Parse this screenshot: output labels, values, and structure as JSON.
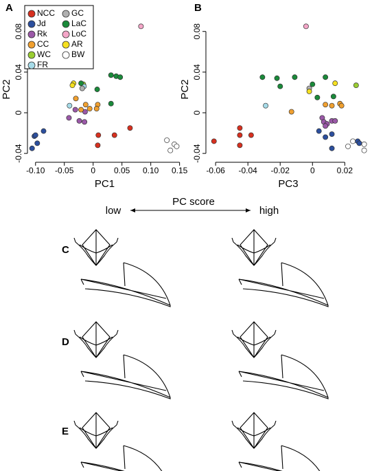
{
  "chart_data": [
    {
      "type": "scatter",
      "panel_label": "A",
      "xlabel": "PC1",
      "ylabel": "PC2",
      "legend": true,
      "xlim": [
        -0.114,
        0.154
      ],
      "ylim": [
        -0.046,
        0.092
      ],
      "xticks": [
        {
          "value": -0.1,
          "label": "-0.10"
        },
        -0.05,
        0,
        0.05,
        {
          "value": 0.1,
          "label": "0.10"
        },
        0.15
      ],
      "yticks": [
        -0.04,
        0,
        0.04,
        0.08
      ],
      "series": [
        {
          "name": "NCC",
          "color": "#d7301f",
          "x": [
            0.009,
            0.008,
            0.037,
            0.064
          ],
          "y": [
            -0.022,
            -0.032,
            -0.022,
            -0.015
          ]
        },
        {
          "name": "Jd",
          "color": "#2c4f9e",
          "x": [
            -0.102,
            -0.097,
            -0.086,
            -0.106,
            -0.1
          ],
          "y": [
            -0.023,
            -0.03,
            -0.018,
            -0.035,
            -0.022
          ]
        },
        {
          "name": "Rk",
          "color": "#9b59a8",
          "x": [
            -0.031,
            -0.042,
            -0.024,
            -0.015,
            -0.014
          ],
          "y": [
            0.003,
            -0.005,
            -0.008,
            -0.009,
            0.001
          ]
        },
        {
          "name": "CC",
          "color": "#f0a030",
          "x": [
            -0.03,
            -0.013,
            -0.006,
            0.008,
            0.006,
            -0.021
          ],
          "y": [
            0.014,
            0.008,
            0.004,
            0.008,
            0.004,
            0.003
          ]
        },
        {
          "name": "WC",
          "color": "#9acd32",
          "x": [
            -0.017
          ],
          "y": [
            0.028
          ]
        },
        {
          "name": "FR",
          "color": "#a6dbe8",
          "x": [
            -0.041,
            -0.016
          ],
          "y": [
            0.007,
            0.026
          ]
        },
        {
          "name": "GC",
          "color": "#b0b0b0",
          "x": [
            -0.019
          ],
          "y": [
            0.024
          ]
        },
        {
          "name": "LaC",
          "color": "#1a8a3a",
          "x": [
            0.031,
            0.04,
            0.047,
            -0.021,
            0.007,
            0.031
          ],
          "y": [
            0.037,
            0.036,
            0.035,
            0.029,
            0.023,
            0.009
          ]
        },
        {
          "name": "LoC",
          "color": "#f4a6c8",
          "x": [
            0.083
          ],
          "y": [
            0.085
          ]
        },
        {
          "name": "AR",
          "color": "#f5e020",
          "x": [
            -0.034,
            -0.036
          ],
          "y": [
            0.029,
            0.027
          ]
        },
        {
          "name": "BW",
          "color": "#ffffff",
          "x": [
            0.128,
            0.134,
            0.141,
            0.145
          ],
          "y": [
            -0.027,
            -0.037,
            -0.031,
            -0.033
          ]
        }
      ]
    },
    {
      "type": "scatter",
      "panel_label": "B",
      "xlabel": "PC3",
      "ylabel": "PC2",
      "legend": false,
      "xlim": [
        -0.066,
        0.036
      ],
      "ylim": [
        -0.046,
        0.092
      ],
      "xticks": [
        -0.06,
        -0.04,
        -0.02,
        0,
        0.02
      ],
      "yticks": [
        -0.04,
        0,
        0.04,
        0.08
      ],
      "series": [
        {
          "color": "#d7301f",
          "x": [
            -0.061,
            -0.045,
            -0.045,
            -0.038,
            -0.045
          ],
          "y": [
            -0.028,
            -0.015,
            -0.022,
            -0.022,
            -0.032
          ]
        },
        {
          "color": "#2c4f9e",
          "x": [
            0.004,
            0.008,
            0.012,
            0.012,
            0.028,
            0.029
          ],
          "y": [
            -0.018,
            -0.024,
            -0.035,
            -0.021,
            -0.028,
            -0.03
          ]
        },
        {
          "color": "#9b59a8",
          "x": [
            0.006,
            0.007,
            0.009,
            0.012,
            0.014,
            0.008
          ],
          "y": [
            -0.005,
            -0.009,
            -0.011,
            -0.008,
            -0.008,
            -0.013
          ]
        },
        {
          "color": "#f0a030",
          "x": [
            -0.013,
            0.012,
            0.017,
            0.018,
            0.008
          ],
          "y": [
            0.001,
            0.007,
            0.009,
            0.007,
            0.008
          ]
        },
        {
          "color": "#9acd32",
          "x": [
            0.027
          ],
          "y": [
            0.027
          ]
        },
        {
          "color": "#a6dbe8",
          "x": [
            -0.029
          ],
          "y": [
            0.007
          ]
        },
        {
          "color": "#b0b0b0",
          "x": [
            -0.002
          ],
          "y": [
            0.024
          ]
        },
        {
          "color": "#1a8a3a",
          "x": [
            -0.031,
            -0.022,
            -0.02,
            -0.011,
            0,
            0.008,
            0.003,
            0.013
          ],
          "y": [
            0.035,
            0.034,
            0.026,
            0.035,
            0.028,
            0.035,
            0.015,
            0.016
          ]
        },
        {
          "color": "#f4a6c8",
          "x": [
            -0.004
          ],
          "y": [
            0.085
          ]
        },
        {
          "color": "#f5e020",
          "x": [
            0.014,
            -0.002
          ],
          "y": [
            0.029,
            0.021
          ]
        },
        {
          "color": "#ffffff",
          "x": [
            0.022,
            0.025,
            0.032,
            0.032
          ],
          "y": [
            -0.033,
            -0.028,
            -0.037,
            -0.031
          ]
        }
      ]
    }
  ],
  "score_axis": {
    "title": "PC score",
    "low": "low",
    "high": "high"
  },
  "panel_labels": [
    "C",
    "D",
    "E"
  ]
}
